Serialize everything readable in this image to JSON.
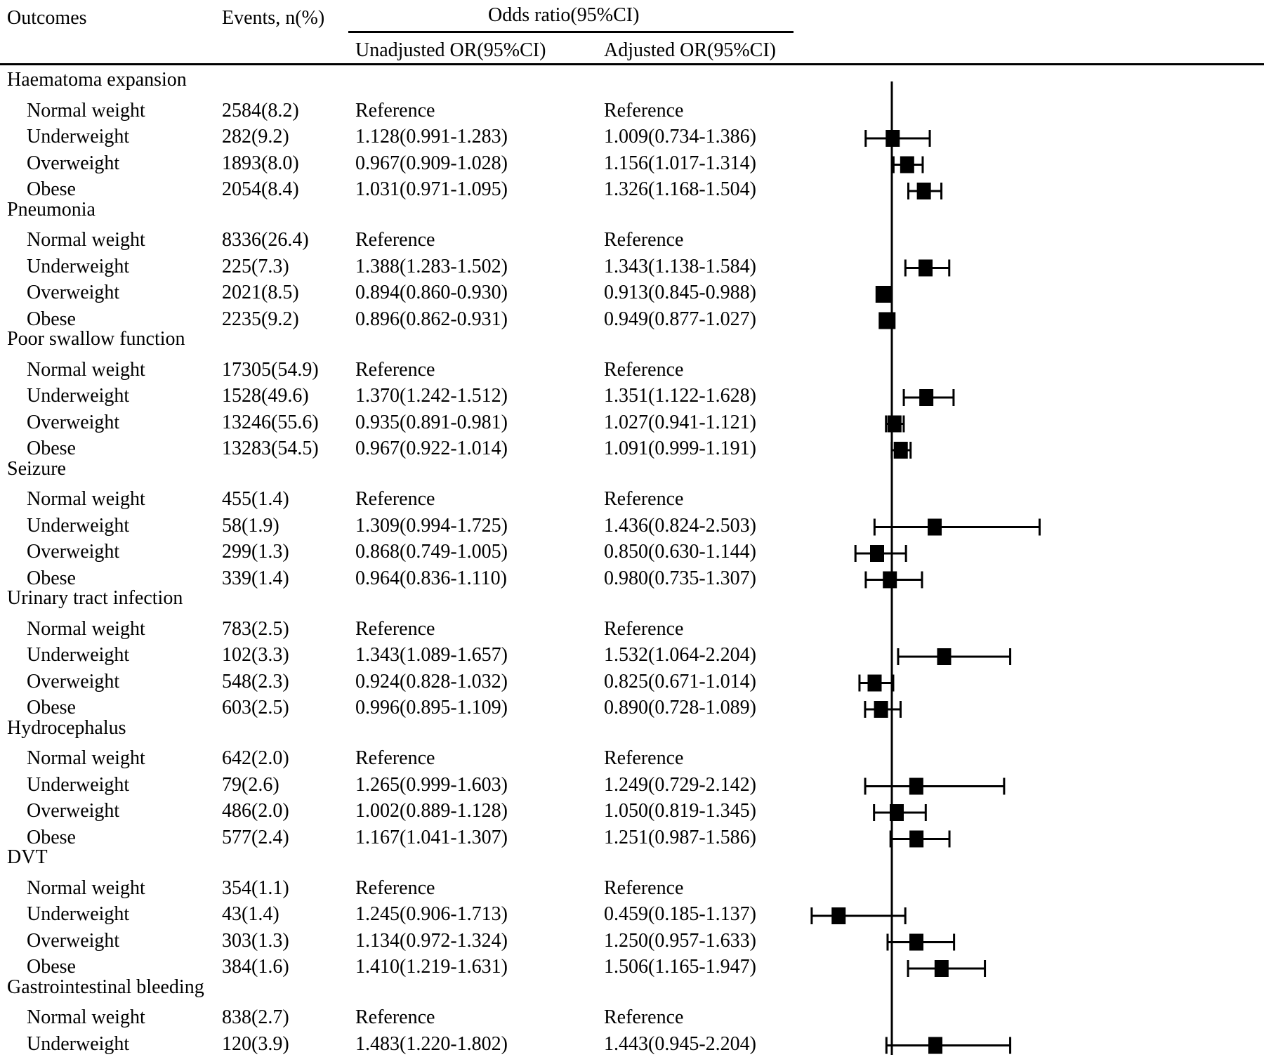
{
  "headers": {
    "outcomes": "Outcomes",
    "events": "Events, n(%)",
    "odds_ratio": "Odds ratio(95%CI)",
    "unadjusted": "Unadjusted OR(95%CI)",
    "adjusted": "Adjusted OR(95%CI)"
  },
  "chart_data": {
    "type": "forest",
    "reference_line": 1,
    "xlim": [
      0.4,
      2.7
    ],
    "groups": [
      {
        "outcome": "Haematoma expansion",
        "rows": [
          {
            "category": "Normal weight",
            "events": "2584(8.2)",
            "unadjusted": "Reference",
            "adjusted": "Reference"
          },
          {
            "category": "Underweight",
            "events": "282(9.2)",
            "unadjusted": "1.128(0.991-1.283)",
            "adjusted": "1.009(0.734-1.386)",
            "or": 1.009,
            "lo": 0.734,
            "hi": 1.386
          },
          {
            "category": "Overweight",
            "events": "1893(8.0)",
            "unadjusted": "0.967(0.909-1.028)",
            "adjusted": "1.156(1.017-1.314)",
            "or": 1.156,
            "lo": 1.017,
            "hi": 1.314
          },
          {
            "category": "Obese",
            "events": "2054(8.4)",
            "unadjusted": "1.031(0.971-1.095)",
            "adjusted": "1.326(1.168-1.504)",
            "or": 1.326,
            "lo": 1.168,
            "hi": 1.504
          }
        ]
      },
      {
        "outcome": "Pneumonia",
        "rows": [
          {
            "category": "Normal weight",
            "events": "8336(26.4)",
            "unadjusted": "Reference",
            "adjusted": "Reference"
          },
          {
            "category": "Underweight",
            "events": "225(7.3)",
            "unadjusted": "1.388(1.283-1.502)",
            "adjusted": "1.343(1.138-1.584)",
            "or": 1.343,
            "lo": 1.138,
            "hi": 1.584
          },
          {
            "category": "Overweight",
            "events": "2021(8.5)",
            "unadjusted": "0.894(0.860-0.930)",
            "adjusted": "0.913(0.845-0.988)",
            "or": 0.913,
            "lo": 0.845,
            "hi": 0.988
          },
          {
            "category": "Obese",
            "events": "2235(9.2)",
            "unadjusted": "0.896(0.862-0.931)",
            "adjusted": "0.949(0.877-1.027)",
            "or": 0.949,
            "lo": 0.877,
            "hi": 1.027
          }
        ]
      },
      {
        "outcome": "Poor swallow function",
        "rows": [
          {
            "category": "Normal weight",
            "events": "17305(54.9)",
            "unadjusted": "Reference",
            "adjusted": "Reference"
          },
          {
            "category": "Underweight",
            "events": "1528(49.6)",
            "unadjusted": "1.370(1.242-1.512)",
            "adjusted": "1.351(1.122-1.628)",
            "or": 1.351,
            "lo": 1.122,
            "hi": 1.628
          },
          {
            "category": "Overweight",
            "events": "13246(55.6)",
            "unadjusted": "0.935(0.891-0.981)",
            "adjusted": "1.027(0.941-1.121)",
            "or": 1.027,
            "lo": 0.941,
            "hi": 1.121
          },
          {
            "category": "Obese",
            "events": "13283(54.5)",
            "unadjusted": "0.967(0.922-1.014)",
            "adjusted": "1.091(0.999-1.191)",
            "or": 1.091,
            "lo": 0.999,
            "hi": 1.191
          }
        ]
      },
      {
        "outcome": "Seizure",
        "rows": [
          {
            "category": "Normal weight",
            "events": "455(1.4)",
            "unadjusted": "Reference",
            "adjusted": "Reference"
          },
          {
            "category": "Underweight",
            "events": "58(1.9)",
            "unadjusted": "1.309(0.994-1.725)",
            "adjusted": "1.436(0.824-2.503)",
            "or": 1.436,
            "lo": 0.824,
            "hi": 2.503
          },
          {
            "category": "Overweight",
            "events": "299(1.3)",
            "unadjusted": "0.868(0.749-1.005)",
            "adjusted": "0.850(0.630-1.144)",
            "or": 0.85,
            "lo": 0.63,
            "hi": 1.144
          },
          {
            "category": "Obese",
            "events": "339(1.4)",
            "unadjusted": "0.964(0.836-1.110)",
            "adjusted": "0.980(0.735-1.307)",
            "or": 0.98,
            "lo": 0.735,
            "hi": 1.307
          }
        ]
      },
      {
        "outcome": "Urinary tract infection",
        "rows": [
          {
            "category": "Normal weight",
            "events": "783(2.5)",
            "unadjusted": "Reference",
            "adjusted": "Reference"
          },
          {
            "category": "Underweight",
            "events": "102(3.3)",
            "unadjusted": "1.343(1.089-1.657)",
            "adjusted": "1.532(1.064-2.204)",
            "or": 1.532,
            "lo": 1.064,
            "hi": 2.204
          },
          {
            "category": "Overweight",
            "events": "548(2.3)",
            "unadjusted": "0.924(0.828-1.032)",
            "adjusted": "0.825(0.671-1.014)",
            "or": 0.825,
            "lo": 0.671,
            "hi": 1.014
          },
          {
            "category": "Obese",
            "events": "603(2.5)",
            "unadjusted": "0.996(0.895-1.109)",
            "adjusted": "0.890(0.728-1.089)",
            "or": 0.89,
            "lo": 0.728,
            "hi": 1.089
          }
        ]
      },
      {
        "outcome": "Hydrocephalus",
        "rows": [
          {
            "category": "Normal weight",
            "events": "642(2.0)",
            "unadjusted": "Reference",
            "adjusted": "Reference"
          },
          {
            "category": "Underweight",
            "events": "79(2.6)",
            "unadjusted": "1.265(0.999-1.603)",
            "adjusted": "1.249(0.729-2.142)",
            "or": 1.249,
            "lo": 0.729,
            "hi": 2.142
          },
          {
            "category": "Overweight",
            "events": "486(2.0)",
            "unadjusted": "1.002(0.889-1.128)",
            "adjusted": "1.050(0.819-1.345)",
            "or": 1.05,
            "lo": 0.819,
            "hi": 1.345
          },
          {
            "category": "Obese",
            "events": "577(2.4)",
            "unadjusted": "1.167(1.041-1.307)",
            "adjusted": "1.251(0.987-1.586)",
            "or": 1.251,
            "lo": 0.987,
            "hi": 1.586
          }
        ]
      },
      {
        "outcome": "DVT",
        "rows": [
          {
            "category": "Normal weight",
            "events": "354(1.1)",
            "unadjusted": "Reference",
            "adjusted": "Reference"
          },
          {
            "category": "Underweight",
            "events": "43(1.4)",
            "unadjusted": "1.245(0.906-1.713)",
            "adjusted": "0.459(0.185-1.137)",
            "or": 0.459,
            "lo": 0.185,
            "hi": 1.137
          },
          {
            "category": "Overweight",
            "events": "303(1.3)",
            "unadjusted": "1.134(0.972-1.324)",
            "adjusted": "1.250(0.957-1.633)",
            "or": 1.25,
            "lo": 0.957,
            "hi": 1.633
          },
          {
            "category": "Obese",
            "events": "384(1.6)",
            "unadjusted": "1.410(1.219-1.631)",
            "adjusted": "1.506(1.165-1.947)",
            "or": 1.506,
            "lo": 1.165,
            "hi": 1.947
          }
        ]
      },
      {
        "outcome": "Gastrointestinal bleeding",
        "rows": [
          {
            "category": "Normal weight",
            "events": "838(2.7)",
            "unadjusted": "Reference",
            "adjusted": "Reference"
          },
          {
            "category": "Underweight",
            "events": "120(3.9)",
            "unadjusted": "1.483(1.220-1.802)",
            "adjusted": "1.443(0.945-2.204)",
            "or": 1.443,
            "lo": 0.945,
            "hi": 2.204
          }
        ]
      }
    ]
  }
}
